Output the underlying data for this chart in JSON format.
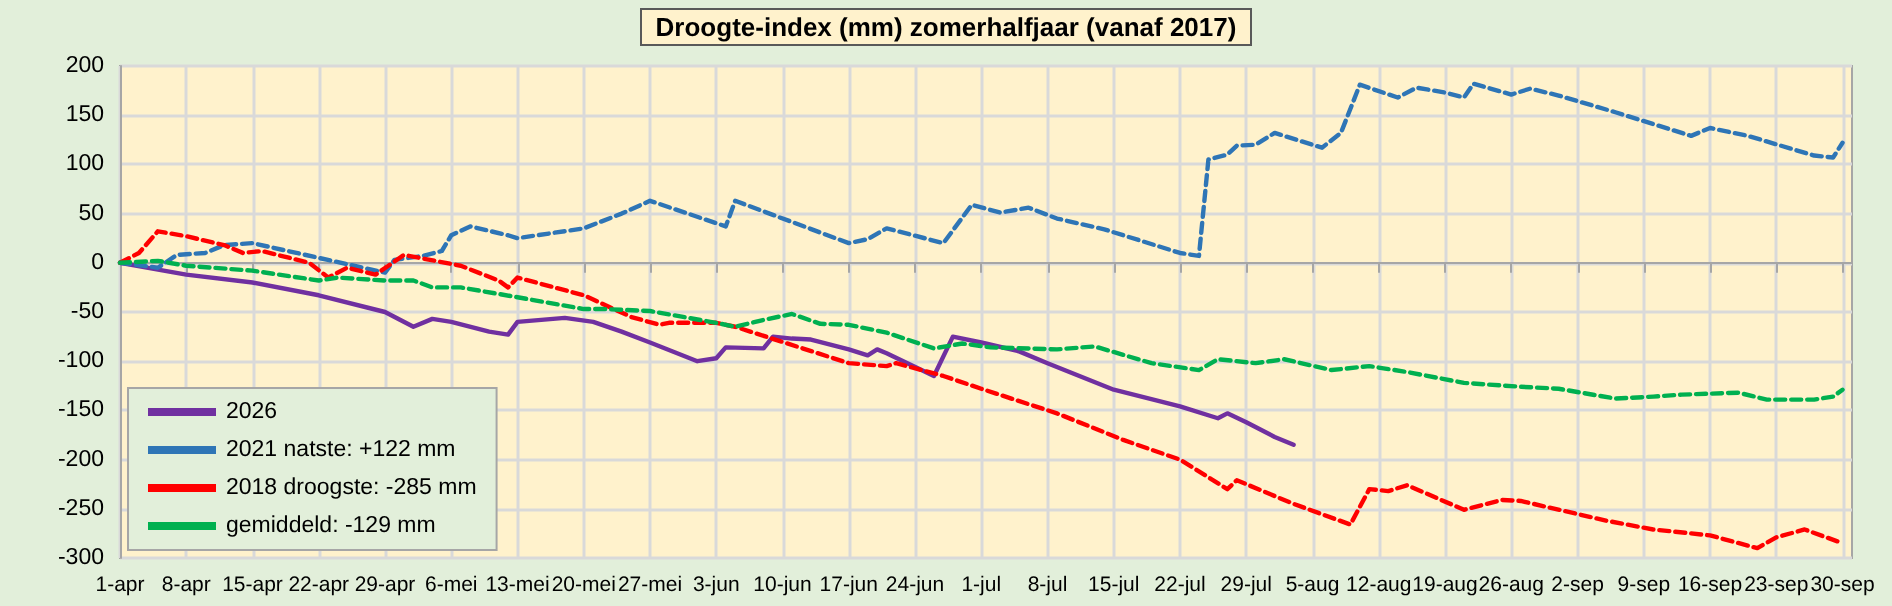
{
  "chart_data": {
    "type": "line",
    "title": "Droogte-index (mm) zomerhalfjaar (vanaf 2017)",
    "xlim": [
      "--04-01",
      "--10-01"
    ],
    "xticks": [
      {
        "value": "--04-01",
        "label": "1-apr"
      },
      {
        "value": "--04-08",
        "label": "8-apr"
      },
      {
        "value": "--04-15",
        "label": "15-apr"
      },
      {
        "value": "--04-22",
        "label": "22-apr"
      },
      {
        "value": "--04-29",
        "label": "29-apr"
      },
      {
        "value": "--05-06",
        "label": "6-mei"
      },
      {
        "value": "--05-13",
        "label": "13-mei"
      },
      {
        "value": "--05-20",
        "label": "20-mei"
      },
      {
        "value": "--05-27",
        "label": "27-mei"
      },
      {
        "value": "--06-03",
        "label": "3-jun"
      },
      {
        "value": "--06-10",
        "label": "10-jun"
      },
      {
        "value": "--06-17",
        "label": "17-jun"
      },
      {
        "value": "--06-24",
        "label": "24-jun"
      },
      {
        "value": "--07-01",
        "label": "1-jul"
      },
      {
        "value": "--07-08",
        "label": "8-jul"
      },
      {
        "value": "--07-15",
        "label": "15-jul"
      },
      {
        "value": "--07-22",
        "label": "22-jul"
      },
      {
        "value": "--07-29",
        "label": "29-jul"
      },
      {
        "value": "--08-05",
        "label": "5-aug"
      },
      {
        "value": "--08-12",
        "label": "12-aug"
      },
      {
        "value": "--08-19",
        "label": "19-aug"
      },
      {
        "value": "--08-26",
        "label": "26-aug"
      },
      {
        "value": "--09-02",
        "label": "2-sep"
      },
      {
        "value": "--09-09",
        "label": "9-sep"
      },
      {
        "value": "--09-16",
        "label": "16-sep"
      },
      {
        "value": "--09-23",
        "label": "23-sep"
      },
      {
        "value": "--09-30",
        "label": "30-sep"
      }
    ],
    "ylim": [
      -300,
      200
    ],
    "yticks": [
      -300,
      -250,
      -200,
      -150,
      -100,
      -50,
      0,
      50,
      100,
      150,
      200
    ],
    "grid": true,
    "legend": "bottom left",
    "marker": "none",
    "series": [
      {
        "name": "2026",
        "color": "#7030a0",
        "line_style": "solid",
        "x": [
          "--04-01",
          "--04-08",
          "--04-15",
          "--04-22",
          "--04-29",
          "--05-02",
          "--05-04",
          "--05-06",
          "--05-10",
          "--05-12",
          "--05-13",
          "--05-18",
          "--05-21",
          "--05-24",
          "--05-27",
          "--06-01",
          "--06-03",
          "--06-04",
          "--06-08",
          "--06-09",
          "--06-11",
          "--06-13",
          "--06-17",
          "--06-19",
          "--06-20",
          "--06-21",
          "--06-26",
          "--06-28",
          "--07-01",
          "--07-05",
          "--07-08",
          "--07-15",
          "--07-22",
          "--07-26",
          "--07-27",
          "--07-29",
          "--08-01",
          "--08-03"
        ],
        "values": [
          0,
          -12,
          -20,
          -33,
          -50,
          -65,
          -57,
          -60,
          -70,
          -73,
          -60,
          -56,
          -60,
          -70,
          -81,
          -100,
          -97,
          -86,
          -87,
          -75,
          -77,
          -78,
          -88,
          -94,
          -88,
          -92,
          -115,
          -75,
          -81,
          -90,
          -102,
          -129,
          -146,
          -158,
          -153,
          -162,
          -177,
          -185
        ]
      },
      {
        "name": "2021 natste: +122 mm",
        "color": "#2e75b6",
        "line_style": "dashed",
        "x": [
          "--04-01",
          "--04-05",
          "--04-07",
          "--04-10",
          "--04-12",
          "--04-15",
          "--04-22",
          "--04-29",
          "--04-30",
          "--05-03",
          "--05-05",
          "--05-06",
          "--05-08",
          "--05-12",
          "--05-13",
          "--05-20",
          "--05-24",
          "--05-27",
          "--06-04",
          "--06-05",
          "--06-17",
          "--06-19",
          "--06-21",
          "--06-27",
          "--06-30",
          "--07-03",
          "--07-06",
          "--07-09",
          "--07-14",
          "--07-22",
          "--07-24",
          "--07-25",
          "--07-27",
          "--07-28",
          "--07-30",
          "--08-01",
          "--08-06",
          "--08-08",
          "--08-10",
          "--08-14",
          "--08-16",
          "--08-19",
          "--08-21",
          "--08-22",
          "--08-26",
          "--08-28",
          "--08-31",
          "--09-06",
          "--09-10",
          "--09-14",
          "--09-16",
          "--09-20",
          "--09-27",
          "--09-29",
          "--09-30"
        ],
        "values": [
          0,
          -5,
          8,
          10,
          18,
          20,
          5,
          -10,
          3,
          7,
          12,
          28,
          37,
          28,
          25,
          35,
          50,
          63,
          37,
          63,
          20,
          24,
          35,
          20,
          59,
          51,
          56,
          45,
          34,
          10,
          7,
          105,
          110,
          119,
          120,
          132,
          117,
          132,
          181,
          168,
          178,
          173,
          168,
          182,
          171,
          177,
          170,
          153,
          141,
          129,
          137,
          129,
          109,
          107,
          122
        ]
      },
      {
        "name": "2018 droogste: -285 mm",
        "color": "#ff0000",
        "line_style": "dashed",
        "x": [
          "--04-01",
          "--04-03",
          "--04-05",
          "--04-08",
          "--04-12",
          "--04-14",
          "--04-16",
          "--04-21",
          "--04-23",
          "--04-25",
          "--04-28",
          "--05-01",
          "--05-07",
          "--05-11",
          "--05-12",
          "--05-13",
          "--05-20",
          "--05-25",
          "--05-28",
          "--05-29",
          "--06-03",
          "--06-05",
          "--06-17",
          "--06-21",
          "--06-22",
          "--06-27",
          "--07-01",
          "--07-09",
          "--07-16",
          "--07-22",
          "--07-27",
          "--07-28",
          "--08-03",
          "--08-09",
          "--08-11",
          "--08-13",
          "--08-15",
          "--08-21",
          "--08-25",
          "--08-27",
          "--09-05",
          "--09-10",
          "--09-16",
          "--09-21",
          "--09-23",
          "--09-26",
          "--09-30"
        ],
        "values": [
          0,
          10,
          32,
          27,
          18,
          10,
          12,
          0,
          -15,
          -5,
          -12,
          8,
          -3,
          -18,
          -25,
          -15,
          -33,
          -55,
          -63,
          -61,
          -61,
          -65,
          -102,
          -105,
          -102,
          -115,
          -128,
          -153,
          -180,
          -200,
          -230,
          -221,
          -245,
          -266,
          -230,
          -232,
          -226,
          -251,
          -241,
          -242,
          -262,
          -271,
          -277,
          -290,
          -279,
          -271,
          -285
        ]
      },
      {
        "name": "gemiddeld: -129 mm",
        "color": "#00b050",
        "line_style": "dashed",
        "x": [
          "--04-01",
          "--04-05",
          "--04-08",
          "--04-15",
          "--04-22",
          "--04-24",
          "--04-29",
          "--05-02",
          "--05-04",
          "--05-07",
          "--05-13",
          "--05-20",
          "--05-22",
          "--05-27",
          "--06-03",
          "--06-05",
          "--06-08",
          "--06-11",
          "--06-14",
          "--06-17",
          "--06-21",
          "--06-26",
          "--06-29",
          "--07-02",
          "--07-09",
          "--07-13",
          "--07-19",
          "--07-24",
          "--07-26",
          "--07-30",
          "--08-02",
          "--08-07",
          "--08-11",
          "--08-15",
          "--08-21",
          "--08-27",
          "--08-31",
          "--09-06",
          "--09-10",
          "--09-13",
          "--09-19",
          "--09-22",
          "--09-27",
          "--09-29",
          "--09-30"
        ],
        "values": [
          0,
          2,
          -3,
          -8,
          -18,
          -15,
          -18,
          -18,
          -25,
          -25,
          -35,
          -47,
          -47,
          -49,
          -61,
          -65,
          -58,
          -52,
          -62,
          -63,
          -71,
          -87,
          -82,
          -86,
          -88,
          -85,
          -102,
          -109,
          -98,
          -102,
          -98,
          -109,
          -105,
          -111,
          -122,
          -126,
          -128,
          -138,
          -136,
          -134,
          -132,
          -139,
          -139,
          -136,
          -129
        ]
      }
    ]
  }
}
